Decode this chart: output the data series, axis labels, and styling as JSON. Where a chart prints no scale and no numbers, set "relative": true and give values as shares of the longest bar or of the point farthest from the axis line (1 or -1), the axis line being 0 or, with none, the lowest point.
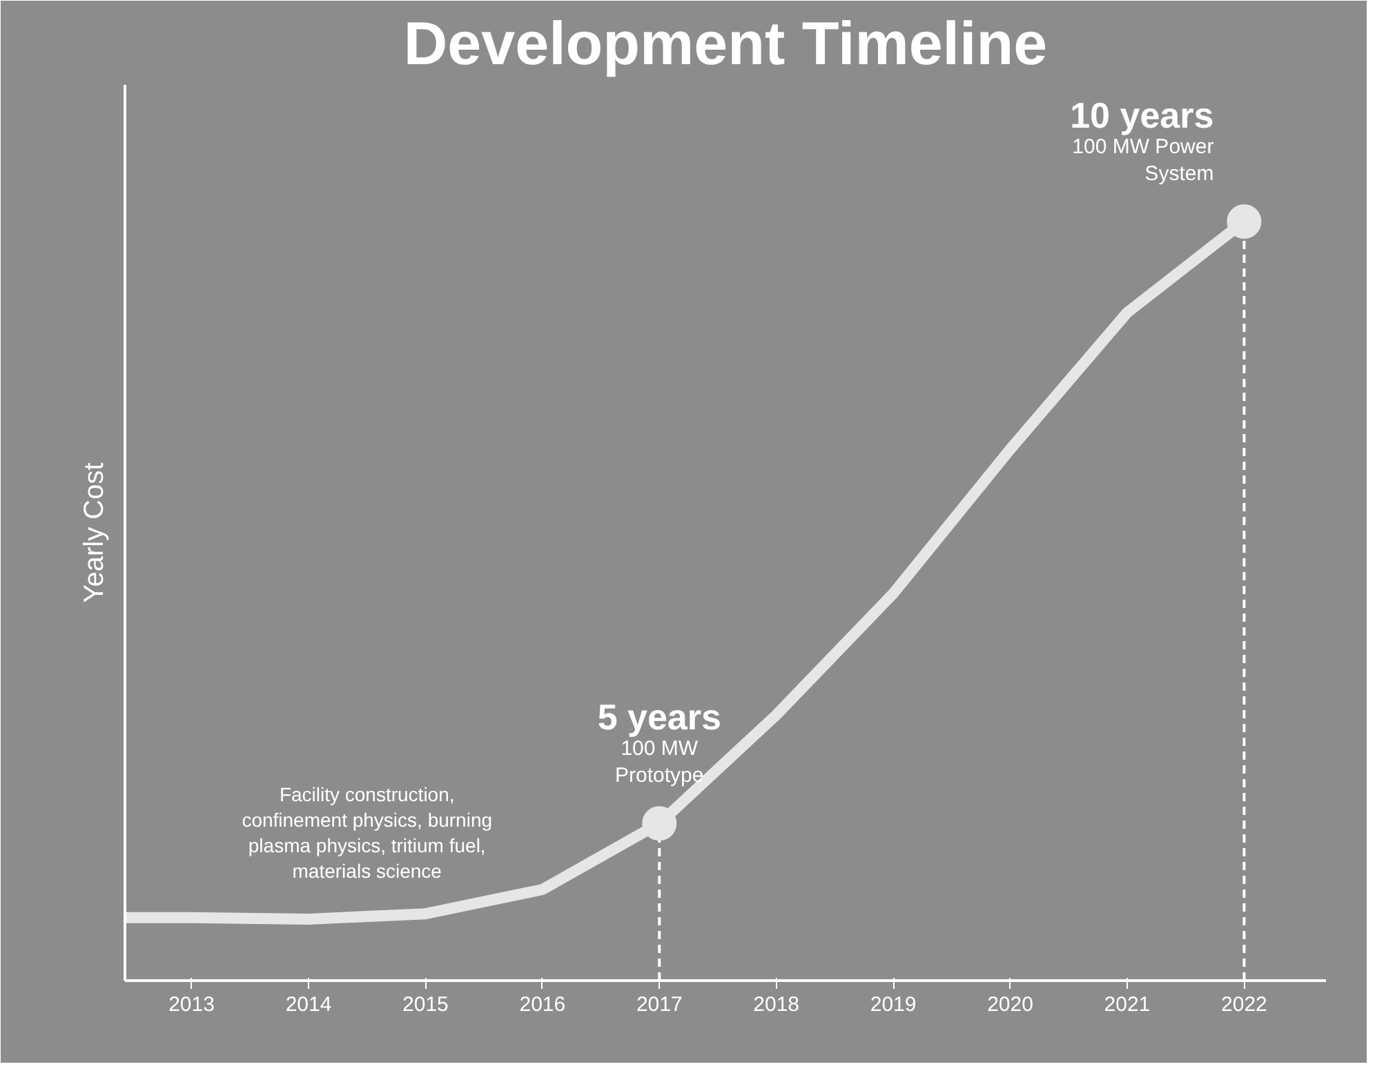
{
  "chart_data": {
    "type": "line",
    "title": "Development Timeline",
    "ylabel": "Yearly Cost",
    "relative": true,
    "x": [
      2012.43,
      2013,
      2014,
      2015,
      2016,
      2017,
      2018,
      2019,
      2020,
      2021,
      2022
    ],
    "series": [
      {
        "color": "#e6e6e6",
        "values": [
          0.083,
          0.083,
          0.081,
          0.088,
          0.12,
          0.207,
          0.35,
          0.51,
          0.7,
          0.88,
          1
        ]
      },
      {
        "type": "scatter",
        "marker": "circle",
        "color": "#e6e6e6",
        "x": [
          2017,
          2022
        ],
        "values": [
          0.207,
          1
        ]
      }
    ],
    "xlim": [
      2012.43,
      2022.7
    ],
    "xticks": [
      2013,
      2014,
      2015,
      2016,
      2017,
      2018,
      2019,
      2020,
      2021,
      2022
    ],
    "ref_lines": [
      {
        "axis": "x",
        "value": 2017,
        "color": "#ffffff",
        "line_style": "dashed"
      },
      {
        "axis": "x",
        "value": 2022,
        "color": "#ffffff",
        "line_style": "dashed"
      }
    ],
    "annotations": [
      {
        "text": "Facility construction,\nconfinement physics, burning\nplasma physics, tritium fuel,\nmaterials science",
        "x": 2014.5,
        "y": 0.083
      },
      {
        "text": "5 years",
        "x": 2017,
        "y": 0.207
      },
      {
        "text": "100 MW\nPrototype",
        "x": 2017,
        "y": 0.207
      },
      {
        "text": "10 years",
        "x": 2022,
        "y": 1
      },
      {
        "text": "100 MW Power\nSystem",
        "x": 2022,
        "y": 1
      }
    ],
    "grid": false,
    "marker": "none",
    "line_style": "solid"
  }
}
